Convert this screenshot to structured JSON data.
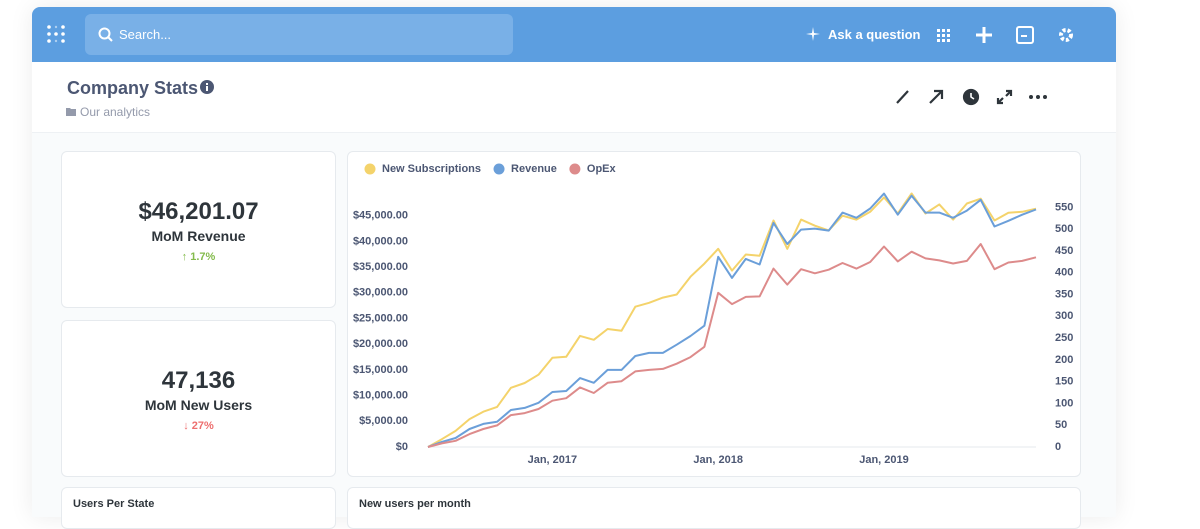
{
  "nav": {
    "search_placeholder": "Search...",
    "ask": "Ask a question"
  },
  "dashboard": {
    "title": "Company Stats",
    "collection": "Our analytics"
  },
  "cards": [
    {
      "value": "$46,201.07",
      "label": "MoM Revenue",
      "change": "1.7%"
    },
    {
      "value": "47,136",
      "label": "MoM New Users",
      "change": "27%"
    }
  ],
  "bottom_cards": [
    "Users Per State",
    "New users per month"
  ],
  "chart": {
    "type": "line",
    "categories": [
      null,
      null,
      null,
      null,
      null,
      null,
      null,
      null,
      null,
      "Jan, 2017",
      null,
      null,
      null,
      null,
      null,
      null,
      null,
      null,
      null,
      null,
      null,
      "Jan, 2018",
      null,
      null,
      null,
      null,
      null,
      null,
      null,
      null,
      null,
      null,
      null,
      "Jan, 2019",
      null,
      null,
      null,
      null,
      null,
      null,
      null,
      null,
      null,
      null,
      null
    ],
    "series": [
      {
        "name": "New Subscriptions",
        "color": "#f4d36b",
        "axis": "y2",
        "values": [
          0,
          18,
          37,
          64,
          81,
          92,
          136,
          147,
          166,
          205,
          207,
          255,
          246,
          271,
          267,
          322,
          331,
          343,
          350,
          391,
          421,
          455,
          405,
          442,
          439,
          520,
          455,
          522,
          508,
          497,
          531,
          522,
          540,
          573,
          536,
          582,
          536,
          557,
          522,
          559,
          570,
          520,
          538,
          540,
          547
        ]
      },
      {
        "name": "Revenue",
        "color": "#6b9fd9",
        "values": [
          0,
          1000,
          1750,
          3500,
          4500,
          4900,
          7200,
          7600,
          8600,
          10700,
          10900,
          13400,
          12500,
          15000,
          15000,
          17700,
          18300,
          18300,
          19900,
          21600,
          23600,
          37000,
          32900,
          36600,
          35500,
          43600,
          39500,
          42300,
          42500,
          42100,
          45600,
          44600,
          46400,
          49300,
          45200,
          48900,
          45600,
          45600,
          44600,
          46000,
          48100,
          42900,
          44000,
          45200,
          46200
        ]
      },
      {
        "name": "OpEx",
        "color": "#dd8b8b",
        "values": [
          0,
          700,
          1200,
          2500,
          3500,
          4200,
          6200,
          6600,
          7400,
          9000,
          9500,
          11600,
          10500,
          12500,
          12800,
          14700,
          15000,
          15200,
          16200,
          17500,
          19500,
          30000,
          27800,
          29200,
          29300,
          34700,
          31600,
          34600,
          33800,
          34500,
          35800,
          34700,
          36000,
          39000,
          36100,
          38000,
          36700,
          36300,
          35700,
          36200,
          39500,
          34600,
          35900,
          36200,
          36900
        ]
      }
    ],
    "ylim": [
      0,
      50000
    ],
    "yticks": [
      {
        "value": 0,
        "label": "$0"
      },
      {
        "value": 5000,
        "label": "$5,000.00"
      },
      {
        "value": 10000,
        "label": "$10,000.00"
      },
      {
        "value": 15000,
        "label": "$15,000.00"
      },
      {
        "value": 20000,
        "label": "$20,000.00"
      },
      {
        "value": 25000,
        "label": "$25,000.00"
      },
      {
        "value": 30000,
        "label": "$30,000.00"
      },
      {
        "value": 35000,
        "label": "$35,000.00"
      },
      {
        "value": 40000,
        "label": "$40,000.00"
      },
      {
        "value": 45000,
        "label": "$45,000.00"
      }
    ],
    "y2lim": [
      0,
      590
    ],
    "y2ticks": [
      0,
      50,
      100,
      150,
      200,
      250,
      300,
      350,
      400,
      450,
      500,
      550
    ],
    "legend": "top-left",
    "grid": false
  }
}
